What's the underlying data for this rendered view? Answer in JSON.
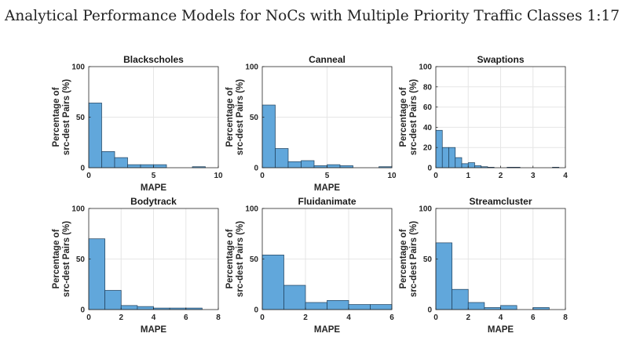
{
  "header": {
    "title": "Analytical Performance Models for NoCs with Multiple Priority Traffic Classes",
    "page": "1:17"
  },
  "colors": {
    "bar": "#61A7DB",
    "bar_edge": "#1F3F5A",
    "grid": "#E6E6E6",
    "axis": "#262626"
  },
  "chart_data": [
    {
      "type": "bar",
      "title": "Blackscholes",
      "xlabel": "MAPE",
      "ylabel": "Percentage of src-dest Pairs (%)",
      "xlim": [
        0,
        10
      ],
      "ylim": [
        0,
        100
      ],
      "xticks": [
        0,
        5,
        10
      ],
      "yticks": [
        0,
        50,
        100
      ],
      "bin_edges": [
        0,
        1,
        2,
        3,
        4,
        5,
        6,
        7,
        8,
        9,
        10
      ],
      "values": [
        64,
        16,
        10,
        3,
        3,
        3,
        0,
        0,
        1,
        0
      ],
      "grid": true
    },
    {
      "type": "bar",
      "title": "Canneal",
      "xlabel": "MAPE",
      "ylabel": "Percentage of src-dest Pairs (%)",
      "xlim": [
        0,
        10
      ],
      "ylim": [
        0,
        100
      ],
      "xticks": [
        0,
        5,
        10
      ],
      "yticks": [
        0,
        50,
        100
      ],
      "bin_edges": [
        0,
        1,
        2,
        3,
        4,
        5,
        6,
        7,
        8,
        9,
        10
      ],
      "values": [
        62,
        19,
        6,
        7,
        2,
        3,
        2,
        0,
        0,
        1
      ],
      "grid": true
    },
    {
      "type": "bar",
      "title": "Swaptions",
      "xlabel": "",
      "ylabel": "Percentage of src-dest Pairs (%)",
      "xlim": [
        0,
        4
      ],
      "ylim": [
        0,
        100
      ],
      "xticks": [
        0,
        1,
        2,
        3,
        4
      ],
      "yticks": [
        0,
        20,
        40,
        60,
        80,
        100
      ],
      "bin_edges": [
        0,
        0.2,
        0.4,
        0.6,
        0.8,
        1.0,
        1.2,
        1.4,
        1.6,
        1.8,
        2.0,
        2.2,
        2.4,
        2.6,
        2.8,
        3.0,
        3.2,
        3.4,
        3.6,
        3.8,
        4.0
      ],
      "values": [
        37,
        20,
        20,
        10,
        4,
        5,
        2,
        1,
        0.5,
        0,
        0,
        0.5,
        0.5,
        0,
        0,
        0,
        0,
        0,
        0.5,
        0
      ],
      "grid": true
    },
    {
      "type": "bar",
      "title": "Bodytrack",
      "xlabel": "MAPE",
      "ylabel": "Percentage of src-dest Pairs (%)",
      "xlim": [
        0,
        8
      ],
      "ylim": [
        0,
        100
      ],
      "xticks": [
        0,
        2,
        4,
        6,
        8
      ],
      "yticks": [
        0,
        50,
        100
      ],
      "bin_edges": [
        0,
        1,
        2,
        3,
        4,
        5,
        6,
        7
      ],
      "values": [
        70,
        19,
        4,
        3,
        1.5,
        1.5,
        1.5
      ],
      "grid": true
    },
    {
      "type": "bar",
      "title": "Fluidanimate",
      "xlabel": "MAPE",
      "ylabel": "Percentage of src-dest Pairs (%)",
      "xlim": [
        0,
        6
      ],
      "ylim": [
        0,
        100
      ],
      "xticks": [
        0,
        2,
        4,
        6
      ],
      "yticks": [
        0,
        50,
        100
      ],
      "bin_edges": [
        0,
        1,
        2,
        3,
        4,
        5,
        6
      ],
      "values": [
        54,
        24,
        7,
        9,
        5,
        5
      ],
      "grid": true
    },
    {
      "type": "bar",
      "title": "Streamcluster",
      "xlabel": "MAPE",
      "ylabel": "Percentage of src-dest Pairs (%)",
      "xlim": [
        0,
        8
      ],
      "ylim": [
        0,
        100
      ],
      "xticks": [
        0,
        2,
        4,
        6,
        8
      ],
      "yticks": [
        0,
        50,
        100
      ],
      "bin_edges": [
        0,
        1,
        2,
        3,
        4,
        5,
        6,
        7
      ],
      "values": [
        66,
        20,
        7,
        2,
        4,
        0,
        2
      ],
      "grid": true
    }
  ]
}
